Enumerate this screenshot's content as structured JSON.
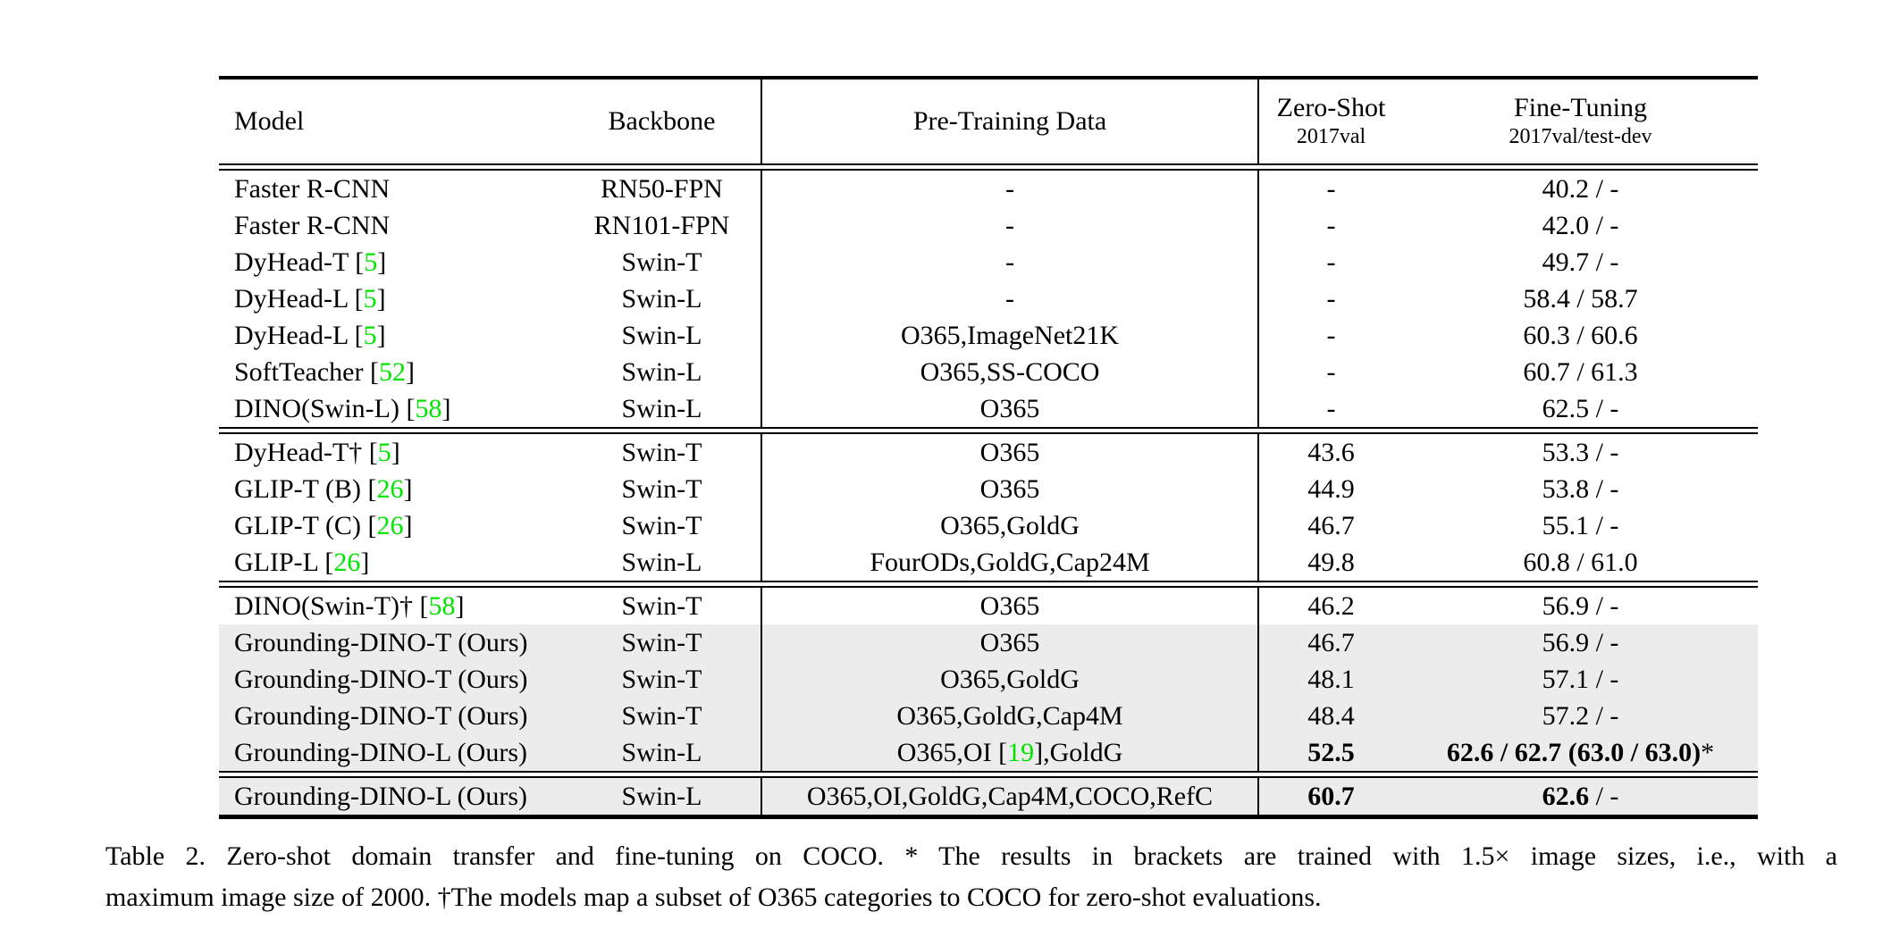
{
  "colors": {
    "citation_green": "#00E500",
    "highlight_row": "#ECECEC",
    "rule_black": "#000000"
  },
  "table": {
    "headers": {
      "model": "Model",
      "backbone": "Backbone",
      "pretraining": "Pre-Training Data",
      "zeroshot_main": "Zero-Shot",
      "zeroshot_sub": "2017val",
      "finetuning_main": "Fine-Tuning",
      "finetuning_sub": "2017val/test-dev"
    },
    "groups": [
      {
        "rows": [
          {
            "model": "Faster R-CNN",
            "backbone": "RN50-FPN",
            "pt": "-",
            "zs": "-",
            "ft": "40.2 / -"
          },
          {
            "model": "Faster R-CNN",
            "backbone": "RN101-FPN",
            "pt": "-",
            "zs": "-",
            "ft": "42.0 / -"
          },
          {
            "model": "DyHead-T",
            "cite": "5",
            "backbone": "Swin-T",
            "pt": "-",
            "zs": "-",
            "ft": "49.7 / -"
          },
          {
            "model": "DyHead-L",
            "cite": "5",
            "backbone": "Swin-L",
            "pt": "-",
            "zs": "-",
            "ft": "58.4 / 58.7"
          },
          {
            "model": "DyHead-L",
            "cite": "5",
            "backbone": "Swin-L",
            "pt": "O365,ImageNet21K",
            "zs": "-",
            "ft": "60.3 / 60.6"
          },
          {
            "model": "SoftTeacher",
            "cite": "52",
            "backbone": "Swin-L",
            "pt": "O365,SS-COCO",
            "zs": "-",
            "ft": "60.7 / 61.3"
          },
          {
            "model": "DINO(Swin-L)",
            "cite": "58",
            "backbone": "Swin-L",
            "pt": "O365",
            "zs": "-",
            "ft": "62.5 / -"
          }
        ]
      },
      {
        "rows": [
          {
            "model": "DyHead-T†",
            "cite": "5",
            "backbone": "Swin-T",
            "pt": "O365",
            "zs": "43.6",
            "ft": "53.3 / -"
          },
          {
            "model": "GLIP-T (B)",
            "cite": "26",
            "backbone": "Swin-T",
            "pt": "O365",
            "zs": "44.9",
            "ft": "53.8 / -"
          },
          {
            "model": "GLIP-T (C)",
            "cite": "26",
            "backbone": "Swin-T",
            "pt": "O365,GoldG",
            "zs": "46.7",
            "ft": "55.1 / -"
          },
          {
            "model": "GLIP-L",
            "cite": "26",
            "backbone": "Swin-L",
            "pt": "FourODs,GoldG,Cap24M",
            "zs": "49.8",
            "ft": "60.8 / 61.0"
          }
        ]
      },
      {
        "rows": [
          {
            "model": "DINO(Swin-T)†",
            "cite": "58",
            "backbone": "Swin-T",
            "pt": "O365",
            "zs": "46.2",
            "ft": "56.9 / -"
          },
          {
            "model": "Grounding-DINO-T (Ours)",
            "backbone": "Swin-T",
            "pt": "O365",
            "zs": "46.7",
            "ft": "56.9 / -",
            "hl": true
          },
          {
            "model": "Grounding-DINO-T (Ours)",
            "backbone": "Swin-T",
            "pt": "O365,GoldG",
            "zs": "48.1",
            "ft": "57.1 / -",
            "hl": true
          },
          {
            "model": "Grounding-DINO-T (Ours)",
            "backbone": "Swin-T",
            "pt": "O365,GoldG,Cap4M",
            "zs": "48.4",
            "ft": "57.2 / -",
            "hl": true
          },
          {
            "model": "Grounding-DINO-L (Ours)",
            "backbone": "Swin-L",
            "pt_pre": "O365,OI [",
            "pt_cite": "19",
            "pt_post": "],GoldG",
            "zs": "52.5",
            "zs_bold": true,
            "ft_bold": "62.6 / 62.7 (63.0 / 63.0)",
            "ft_reg": "*",
            "hl": true
          }
        ]
      },
      {
        "rows": [
          {
            "model": "Grounding-DINO-L (Ours)",
            "backbone": "Swin-L",
            "pt": "O365,OI,GoldG,Cap4M,COCO,RefC",
            "zs": "60.7",
            "zs_bold": true,
            "ft_bold": "62.6",
            "ft_reg": " / -",
            "hl": true
          }
        ]
      }
    ]
  },
  "caption": {
    "line1": "Table 2. Zero-shot domain transfer and fine-tuning on COCO. * The results in brackets are trained with 1.5× image sizes, i.e., with a",
    "line2": "maximum image size of 2000. †The models map a subset of O365 categories to COCO for zero-shot evaluations."
  }
}
